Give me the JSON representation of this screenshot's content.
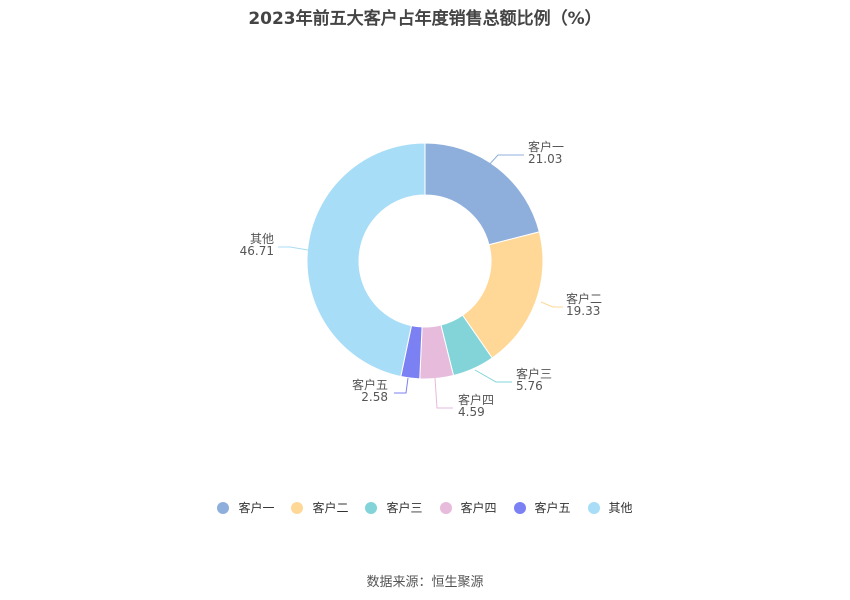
{
  "title": "2023年前五大客户占年度销售总额比例（%）",
  "source": "数据来源：恒生聚源",
  "chart_data": {
    "type": "pie",
    "donut": true,
    "title": "2023年前五大客户占年度销售总额比例（%）",
    "legend_position": "bottom",
    "categories": [
      "客户一",
      "客户二",
      "客户三",
      "客户四",
      "客户五",
      "其他"
    ],
    "values": [
      21.03,
      19.33,
      5.76,
      4.59,
      2.58,
      46.71
    ],
    "value_labels": [
      "21.03",
      "19.33",
      "5.76",
      "4.59",
      "2.58",
      "46.71"
    ],
    "colors": [
      "#8eafdc",
      "#ffd898",
      "#82d4d9",
      "#e6bbdc",
      "#7b80f2",
      "#a8ddf7"
    ]
  }
}
